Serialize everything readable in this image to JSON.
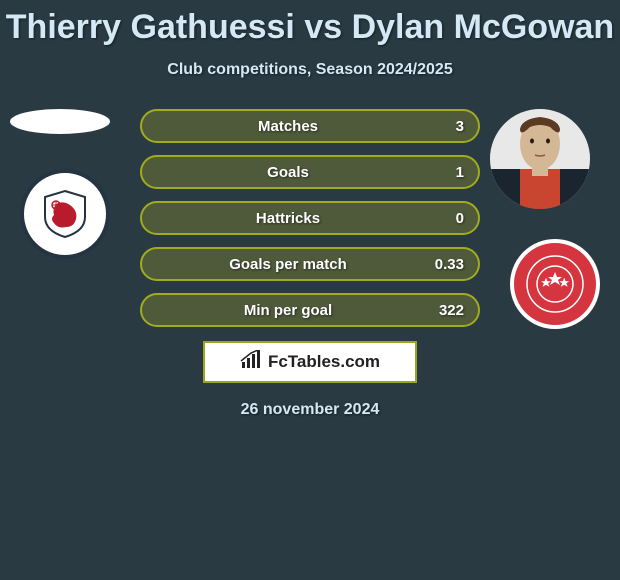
{
  "title": "Thierry Gathuessi vs Dylan McGowan",
  "subtitle": "Club competitions, Season 2024/2025",
  "date": "26 november 2024",
  "brand": "FcTables.com",
  "background_color": "#2a3a42",
  "title_color": "#d4e8f5",
  "title_fontsize": 34,
  "subtitle_fontsize": 16,
  "bar": {
    "height": 34,
    "border_radius": 17,
    "border_color": "#a0ac1e",
    "fill_color": "#4f5a3a",
    "text_color": "#ffffff",
    "label_fontsize": 15
  },
  "stats": [
    {
      "label": "Matches",
      "value": "3"
    },
    {
      "label": "Goals",
      "value": "1"
    },
    {
      "label": "Hattricks",
      "value": "0"
    },
    {
      "label": "Goals per match",
      "value": "0.33"
    },
    {
      "label": "Min per goal",
      "value": "322"
    }
  ],
  "player_left": {
    "name": "Thierry Gathuessi",
    "avatar_placeholder": true,
    "club_crest": {
      "bg": "#ffffff",
      "primary": "#b81c2c",
      "shape": "lion-shield"
    }
  },
  "player_right": {
    "name": "Dylan McGowan",
    "avatar_colors": {
      "skin": "#d4b896",
      "jersey1": "#1a2530",
      "jersey2": "#c94530"
    },
    "club_crest": {
      "bg": "#d4353f",
      "border": "#ffffff",
      "accent": "#ffffff",
      "shape": "ring-stars"
    }
  },
  "brandbox": {
    "bg": "#ffffff",
    "border": "#9ca520",
    "icon_color": "#232323"
  }
}
